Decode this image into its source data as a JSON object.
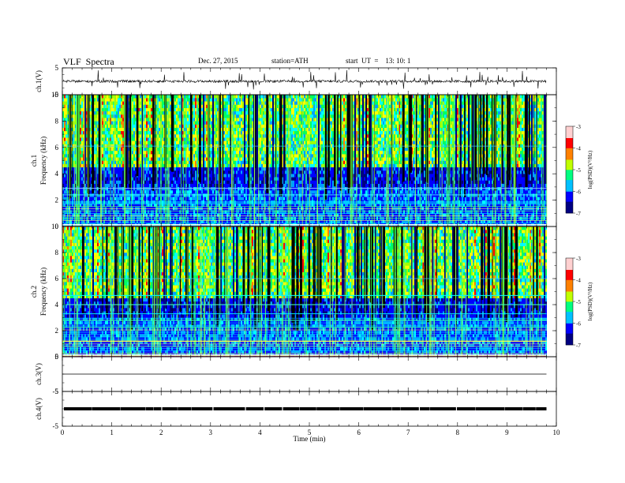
{
  "header": {
    "title": "VLF  Spectra",
    "date": "Dec. 27, 2015",
    "station": "station=ATH",
    "start": "start  UT  =    13: 10: 1"
  },
  "colors": {
    "colormap": [
      "#000080",
      "#0000ff",
      "#00a0ff",
      "#00ffff",
      "#00ff60",
      "#a0ff00",
      "#ffff00",
      "#ff8000",
      "#ff0000",
      "#ffe0e0"
    ],
    "trace": "#000000",
    "background": "#ffffff"
  },
  "chart_data": [
    {
      "type": "line",
      "panel": "ch1-waveform",
      "ylabel": "ch.1(V)",
      "ylim": [
        -5,
        5
      ],
      "yticks": [
        "5",
        "-5"
      ],
      "baseline": 0,
      "description_level": "trace near 0 V with spikes up to about +4 V and down to about -3 V"
    },
    {
      "type": "heatmap",
      "panel": "ch1-spectrogram",
      "ylabel": "ch.1\nFrequency  (kHz)",
      "ylabel_line1": "ch.1",
      "ylabel_line2": "Frequency  (kHz)",
      "ylim": [
        0,
        10
      ],
      "yticks": [
        "0",
        "2",
        "4",
        "6",
        "8",
        "10"
      ],
      "colorbar": {
        "label": "log(PSD)(V²/Hz)",
        "range": [
          -7,
          -3
        ],
        "ticks": [
          "-7",
          "-6",
          "-5",
          "-4",
          "-3"
        ]
      }
    },
    {
      "type": "heatmap",
      "panel": "ch2-spectrogram",
      "ylabel_line1": "ch.2",
      "ylabel_line2": "Frequency  (kHz)",
      "ylim": [
        0,
        10
      ],
      "yticks": [
        "0",
        "2",
        "4",
        "6",
        "8",
        "10"
      ],
      "colorbar": {
        "label": "log(PSD)(V²/Hz)",
        "range": [
          -7,
          -3
        ],
        "ticks": [
          "-7",
          "-6",
          "-5",
          "-4",
          "-3"
        ]
      }
    },
    {
      "type": "line",
      "panel": "ch3-waveform",
      "ylabel": "ch.3(V)",
      "ylim": [
        -5,
        5
      ],
      "yticks": [
        "5",
        "-5"
      ],
      "baseline": 0
    },
    {
      "type": "line",
      "panel": "ch4-waveform",
      "ylabel": "ch.4(V)",
      "ylim": [
        -5,
        5
      ],
      "yticks": [
        "5",
        "-5"
      ],
      "baseline": 0
    },
    {
      "type": "axis",
      "xlabel": "Time  (min)",
      "xlim": [
        0,
        10
      ],
      "xticks": [
        "0",
        "1",
        "2",
        "3",
        "4",
        "5",
        "6",
        "7",
        "8",
        "9",
        "10"
      ],
      "data_end_min": 9.8
    }
  ]
}
